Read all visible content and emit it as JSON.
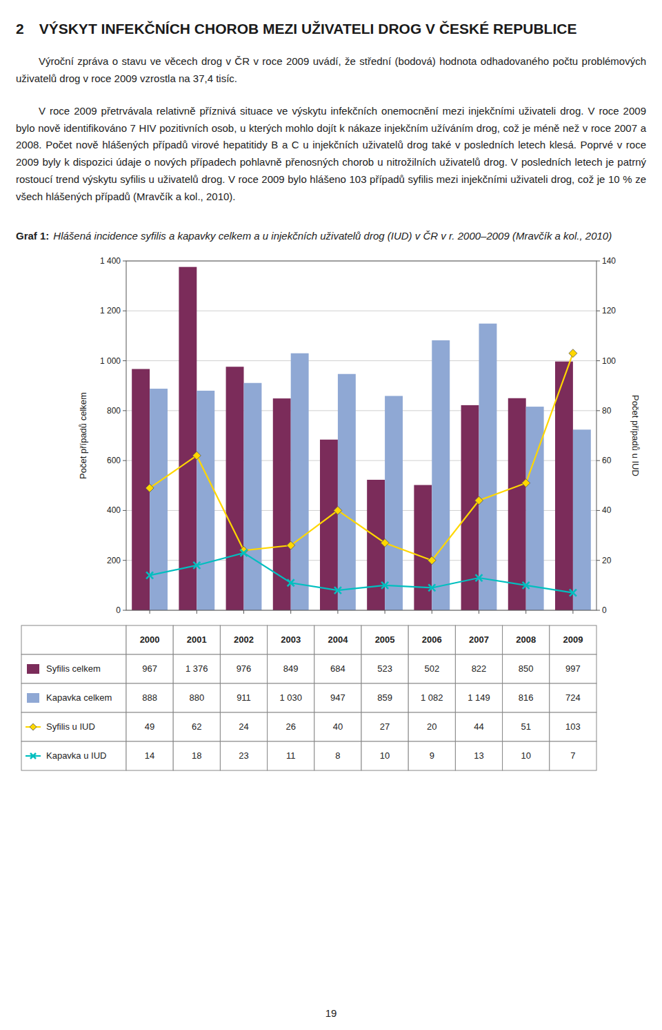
{
  "heading_number": "2",
  "heading": "VÝSKYT INFEKČNÍCH CHOROB MEZI UŽIVATELI DROG V ČESKÉ REPUBLICE",
  "paragraphs": [
    "Výroční zpráva o stavu ve věcech drog v ČR v roce 2009 uvádí, že střední (bodová) hodnota odhadovaného počtu problémových uživatelů drog v roce 2009 vzrostla na 37,4 tisíc.",
    "V roce 2009 přetrvávala relativně příznivá situace ve výskytu infekčních onemocnění mezi injekčními uživateli drog. V roce 2009 bylo nově identifikováno 7 HIV pozitivních osob, u kterých mohlo dojít k nákaze injekčním užíváním drog, což je méně než v roce 2007 a 2008. Počet nově hlášených případů virové hepatitidy B a C u injekčních uživatelů drog také v posledních letech klesá. Poprvé v roce 2009 byly k dispozici údaje o nových případech pohlavně přenosných chorob u nitrožilních uživatelů drog. V posledních letech je patrný rostoucí trend výskytu syfilis u uživatelů drog. V roce 2009 bylo hlášeno 103 případů syfilis mezi injekčními uživateli drog, což je 10 % ze všech hlášených případů (Mravčík a kol., 2010)."
  ],
  "caption_label": "Graf 1:",
  "page_number": "19",
  "chart_data": {
    "type": "bar",
    "title": "Hlášená incidence syfilis a kapavky celkem a u injekčních uživatelů drog (IUD) v ČR v r. 2000–2009 (Mravčík a kol., 2010)",
    "categories": [
      "2000",
      "2001",
      "2002",
      "2003",
      "2004",
      "2005",
      "2006",
      "2007",
      "2008",
      "2009"
    ],
    "ylabel": "Počet případů celkem",
    "y2label": "Počet případů u IUD",
    "ylim": [
      0,
      1400
    ],
    "yticks": [
      0,
      200,
      400,
      600,
      800,
      {
        "value": 1000,
        "label": "1 000"
      },
      {
        "value": 1200,
        "label": "1 200"
      },
      {
        "value": 1400,
        "label": "1 400"
      }
    ],
    "y2lim": [
      0,
      140
    ],
    "y2ticks": [
      0,
      20,
      40,
      60,
      80,
      100,
      120,
      140
    ],
    "grid": true,
    "series": [
      {
        "name": "Syfilis celkem",
        "type": "bar",
        "color": "#7B2C5A",
        "values": [
          967,
          1376,
          976,
          849,
          684,
          523,
          502,
          822,
          850,
          997
        ],
        "value_labels": [
          "967",
          "1 376",
          "976",
          "849",
          "684",
          "523",
          "502",
          "822",
          "850",
          "997"
        ]
      },
      {
        "name": "Kapavka celkem",
        "type": "bar",
        "color": "#8FA8D4",
        "values": [
          888,
          880,
          911,
          1030,
          947,
          859,
          1082,
          1149,
          816,
          724
        ],
        "value_labels": [
          "888",
          "880",
          "911",
          "1 030",
          "947",
          "859",
          "1 082",
          "1 149",
          "816",
          "724"
        ]
      },
      {
        "name": "Syfilis u IUD",
        "type": "line",
        "axis": "y2",
        "color": "#FFD700",
        "marker": "diamond",
        "values": [
          49,
          62,
          24,
          26,
          40,
          27,
          20,
          44,
          51,
          103
        ],
        "value_labels": [
          "49",
          "62",
          "24",
          "26",
          "40",
          "27",
          "20",
          "44",
          "51",
          "103"
        ]
      },
      {
        "name": "Kapavka u IUD",
        "type": "line",
        "axis": "y2",
        "color": "#00BFBF",
        "marker": "x",
        "values": [
          14,
          18,
          23,
          11,
          8,
          10,
          9,
          13,
          10,
          7
        ],
        "value_labels": [
          "14",
          "18",
          "23",
          "11",
          "8",
          "10",
          "9",
          "13",
          "10",
          "7"
        ]
      }
    ]
  }
}
